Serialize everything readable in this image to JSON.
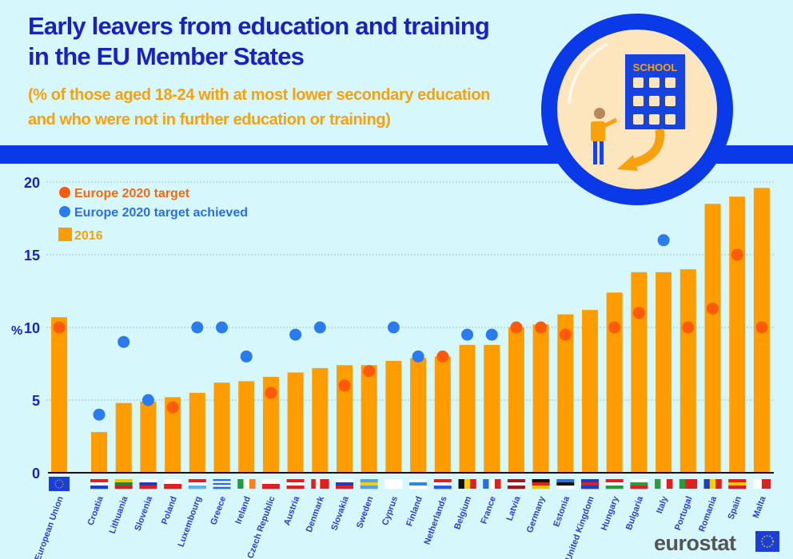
{
  "header": {
    "title_line1": "Early leavers from education and training",
    "title_line2": "in the EU Member States",
    "subtitle_line1": "(% of those aged 18-24 with at most lower secondary education",
    "subtitle_line2": "and who were not in further education or training)"
  },
  "illustration": {
    "sign": "SCHOOL"
  },
  "logo": {
    "text": "eurostat"
  },
  "colors": {
    "bar": "#ff9c00",
    "target": "#ff5a0a",
    "achieved": "#2a7bf0",
    "title": "#1b1fc4",
    "subtitle": "#f7a10f",
    "background": "#d6f8fc"
  },
  "chart_data": {
    "type": "bar",
    "ylabel": "%",
    "ylim": [
      0,
      20
    ],
    "yticks": [
      "0",
      "5",
      "10",
      "15",
      "20"
    ],
    "grid": true,
    "legend_position": "top-left",
    "legend": [
      "Europe 2020 target",
      "Europe 2020 target achieved",
      "2016"
    ],
    "categories": [
      "European Union",
      "Croatia",
      "Lithuania",
      "Slovenia",
      "Poland",
      "Luxembourg",
      "Greece",
      "Ireland",
      "Czech Republic",
      "Austria",
      "Denmark",
      "Slovakia",
      "Sweden",
      "Cyprus",
      "Finland",
      "Netherlands",
      "Belgium",
      "France",
      "Latvia",
      "Germany",
      "Estonia",
      "United Kingdom",
      "Hungary",
      "Bulgaria",
      "Italy",
      "Portugal",
      "Romania",
      "Spain",
      "Malta"
    ],
    "series": [
      {
        "name": "2016",
        "type": "bar",
        "values": [
          10.7,
          2.8,
          4.8,
          4.9,
          5.2,
          5.5,
          6.2,
          6.3,
          6.6,
          6.9,
          7.2,
          7.4,
          7.4,
          7.7,
          7.9,
          8.0,
          8.8,
          8.8,
          10.0,
          10.2,
          10.9,
          11.2,
          12.4,
          13.8,
          13.8,
          14.0,
          18.5,
          19.0,
          19.6
        ]
      },
      {
        "name": "Europe 2020 target",
        "type": "scatter",
        "values": [
          10,
          4,
          9,
          5,
          4.5,
          10,
          10,
          8,
          5.5,
          9.5,
          10,
          6,
          7,
          10,
          8,
          8,
          9.5,
          9.5,
          10,
          10,
          9.5,
          null,
          10,
          11,
          16,
          10,
          11.3,
          15,
          10
        ]
      }
    ],
    "target_achieved": [
      false,
      true,
      true,
      true,
      false,
      true,
      true,
      true,
      false,
      true,
      true,
      false,
      false,
      true,
      true,
      false,
      true,
      true,
      false,
      false,
      false,
      false,
      false,
      false,
      true,
      false,
      false,
      false,
      false
    ]
  }
}
